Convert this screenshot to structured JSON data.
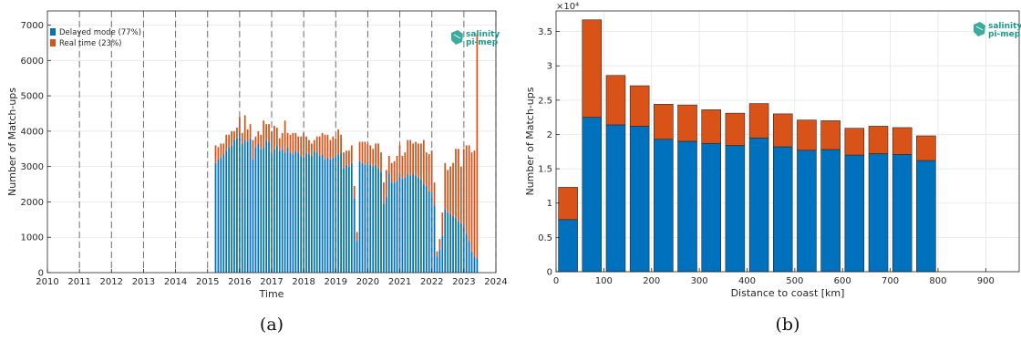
{
  "colors": {
    "delayed": "#0072bd",
    "realtime": "#d95319",
    "grid": "#e6e6e6",
    "vline": "#6f6f6f",
    "logo": "#1a9c8c"
  },
  "logo": {
    "line1": "salinity",
    "line2": "pi-mep"
  },
  "chart_data": [
    {
      "type": "bar",
      "panel_label": "(a)",
      "xlabel": "Time",
      "ylabel": "Number of Match-ups",
      "xlim": [
        2010,
        2024
      ],
      "ylim": [
        0,
        7400
      ],
      "xticks": [
        2010,
        2011,
        2012,
        2013,
        2014,
        2015,
        2016,
        2017,
        2018,
        2019,
        2020,
        2021,
        2022,
        2023,
        2024
      ],
      "yticks": [
        0,
        1000,
        2000,
        3000,
        4000,
        5000,
        6000,
        7000
      ],
      "grid": true,
      "stacked": true,
      "vlines_dashed": [
        2011,
        2012,
        2013,
        2014,
        2015,
        2016,
        2017,
        2018,
        2019,
        2020,
        2021,
        2022,
        2023,
        2024
      ],
      "legend": {
        "position": "top-left",
        "entries": [
          "Delayed mode (77%)",
          "Real time (23%)"
        ]
      },
      "x_start": 2015.25,
      "x_step_years": 0.0833,
      "series": [
        {
          "name": "Delayed mode (77%)",
          "values": [
            3100,
            3200,
            3250,
            3350,
            3450,
            3550,
            3600,
            3750,
            3800,
            3950,
            3650,
            3750,
            3700,
            3800,
            3200,
            3550,
            3650,
            3500,
            3550,
            3750,
            3700,
            3400,
            3500,
            3600,
            3450,
            3500,
            3400,
            3550,
            3400,
            3350,
            3450,
            3400,
            3300,
            3250,
            3400,
            3350,
            3300,
            3450,
            3400,
            3300,
            3350,
            3200,
            3250,
            3200,
            3250,
            3300,
            3350,
            3400,
            2950,
            3050,
            3000,
            3100,
            2100,
            900,
            3150,
            3100,
            3050,
            3150,
            3050,
            3000,
            3050,
            2950,
            2850,
            1950,
            2150,
            2800,
            2550,
            2550,
            2600,
            2800,
            2650,
            2700,
            2800,
            2750,
            2800,
            2750,
            2700,
            2650,
            2500,
            2450,
            2300,
            2300,
            1900,
            450,
            650,
            1050,
            1800,
            1700,
            1650,
            1600,
            1550,
            1450,
            1400,
            1300,
            1100,
            900,
            600,
            450,
            400
          ]
        },
        {
          "name": "Real time (23%)",
          "values": [
            500,
            350,
            400,
            300,
            450,
            350,
            400,
            250,
            300,
            450,
            300,
            700,
            350,
            400,
            550,
            300,
            350,
            400,
            750,
            450,
            500,
            600,
            650,
            500,
            350,
            450,
            900,
            400,
            500,
            600,
            500,
            450,
            550,
            700,
            450,
            400,
            350,
            300,
            450,
            550,
            600,
            700,
            650,
            550,
            600,
            500,
            700,
            500,
            450,
            400,
            450,
            500,
            350,
            250,
            550,
            600,
            650,
            500,
            550,
            500,
            600,
            700,
            550,
            600,
            750,
            500,
            550,
            600,
            700,
            800,
            650,
            700,
            950,
            1000,
            850,
            950,
            950,
            1000,
            1250,
            950,
            1050,
            1150,
            650,
            150,
            300,
            650,
            1300,
            1200,
            1350,
            1500,
            1950,
            2050,
            1600,
            2200,
            2500,
            2700,
            2800,
            3000,
            6350
          ]
        }
      ]
    },
    {
      "type": "bar",
      "panel_label": "(b)",
      "xlabel": "Distance to coast [km]",
      "ylabel": "Number of Match-ups",
      "exponent_label": "×10⁴",
      "xlim": [
        0,
        970
      ],
      "ylim": [
        0,
        3.8
      ],
      "xticks": [
        0,
        100,
        200,
        300,
        400,
        500,
        600,
        700,
        800,
        900
      ],
      "yticks": [
        0,
        0.5,
        1,
        1.5,
        2,
        2.5,
        3,
        3.5
      ],
      "ytick_labels": [
        "0",
        "0.5",
        "1",
        "1.5",
        "2",
        "2.5",
        "3",
        "3.5"
      ],
      "grid": true,
      "stacked": true,
      "x": [
        25,
        75,
        125,
        175,
        225,
        275,
        325,
        375,
        425,
        475,
        525,
        575,
        625,
        675,
        725,
        775
      ],
      "bar_width_km": 50,
      "series": [
        {
          "name": "Delayed mode",
          "values": [
            0.76,
            2.25,
            2.14,
            2.12,
            1.93,
            1.9,
            1.87,
            1.84,
            1.95,
            1.82,
            1.77,
            1.78,
            1.7,
            1.72,
            1.71,
            1.62
          ]
        },
        {
          "name": "Real time",
          "values": [
            0.47,
            1.42,
            0.72,
            0.59,
            0.51,
            0.53,
            0.49,
            0.47,
            0.5,
            0.48,
            0.44,
            0.42,
            0.39,
            0.4,
            0.39,
            0.36
          ]
        }
      ]
    }
  ]
}
